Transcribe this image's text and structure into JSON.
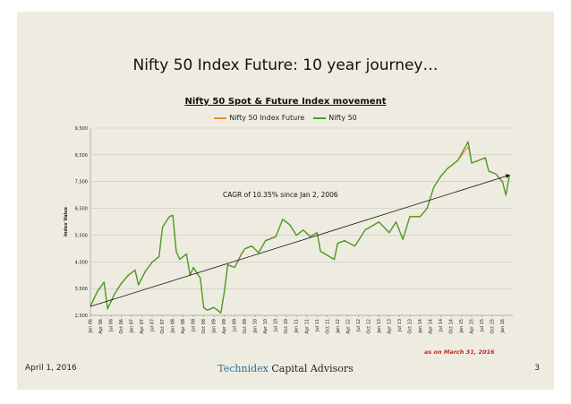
{
  "slide": {
    "title": "Nifty 50 Index Future: 10 year journey…",
    "footer_date": "April 1, 2016",
    "brand_part1": "Tech",
    "brand_part2": "nidex",
    "brand_part3": " Capital Advisors",
    "page_number": "3",
    "as_of": "as on March 31, 2016"
  },
  "colors": {
    "future_series": "#f28c28",
    "spot_series": "#4e9a2a",
    "trend_line": "#111111"
  },
  "chart_data": {
    "type": "line",
    "title": "Nifty 50 Spot & Future Index movement",
    "ylabel": "Index Value",
    "xlabel": "",
    "ylim": [
      2500,
      9500
    ],
    "y_ticks": [
      "2,500",
      "3,500",
      "4,500",
      "5,500",
      "6,500",
      "7,500",
      "8,500",
      "9,500"
    ],
    "x_tick_labels": [
      "Jan 06",
      "Apr 06",
      "Jul 06",
      "Oct 06",
      "Jan 07",
      "Apr 07",
      "Jul 07",
      "Oct 07",
      "Jan 08",
      "Apr 08",
      "Jul 08",
      "Oct 08",
      "Jan 09",
      "Apr 09",
      "Jul 09",
      "Oct 09",
      "Jan 10",
      "Apr 10",
      "Jul 10",
      "Oct 10",
      "Jan 11",
      "Apr 11",
      "Jul 11",
      "Oct 11",
      "Jan 12",
      "Apr 12",
      "Jul 12",
      "Oct 12",
      "Jan 13",
      "Apr 13",
      "Jul 13",
      "Oct 13",
      "Jan 14",
      "Apr 14",
      "Jul 14",
      "Oct 14",
      "Jan 15",
      "Apr 15",
      "Jul 15",
      "Oct 15",
      "Jan 16"
    ],
    "grid": "horizontal",
    "legend_position": "top",
    "annotation": "CAGR of 10.35% since Jan 2, 2006",
    "trend_line": {
      "from": [
        "Jan 06",
        2830
      ],
      "to": [
        "Mar 16",
        7740
      ]
    },
    "series": [
      {
        "name": "Nifty 50 Index Future",
        "x": [
          "Jan 06",
          "Mar 06",
          "May 06",
          "Jun 06",
          "Aug 06",
          "Oct 06",
          "Dec 06",
          "Feb 07",
          "Mar 07",
          "May 07",
          "Jul 07",
          "Sep 07",
          "Oct 07",
          "Dec 07",
          "Jan 08",
          "Feb 08",
          "Mar 08",
          "May 08",
          "Jun 08",
          "Jul 08",
          "Sep 08",
          "Oct 08",
          "Nov 08",
          "Jan 09",
          "Mar 09",
          "Apr 09",
          "May 09",
          "Jul 09",
          "Sep 09",
          "Oct 09",
          "Dec 09",
          "Feb 10",
          "Apr 10",
          "Jul 10",
          "Sep 10",
          "Nov 10",
          "Jan 11",
          "Mar 11",
          "May 11",
          "Jul 11",
          "Aug 11",
          "Dec 11",
          "Jan 12",
          "Mar 12",
          "Jun 12",
          "Sep 12",
          "Jan 13",
          "Apr 13",
          "Jun 13",
          "Aug 13",
          "Oct 13",
          "Jan 14",
          "Mar 14",
          "May 14",
          "Jul 14",
          "Sep 14",
          "Dec 14",
          "Mar 15",
          "Apr 15",
          "Jun 15",
          "Aug 15",
          "Sep 15",
          "Nov 15",
          "Jan 16",
          "Feb 16",
          "Mar 16"
        ],
        "values": [
          2840,
          3400,
          3750,
          2750,
          3300,
          3700,
          4000,
          4200,
          3650,
          4150,
          4500,
          4700,
          5800,
          6200,
          6250,
          4900,
          4600,
          4800,
          4000,
          4300,
          3900,
          2800,
          2700,
          2800,
          2600,
          3400,
          4400,
          4300,
          4800,
          5000,
          5100,
          4850,
          5300,
          5450,
          6100,
          5900,
          5500,
          5700,
          5450,
          5600,
          4900,
          4600,
          5200,
          5300,
          5100,
          5700,
          6000,
          5600,
          6000,
          5350,
          6200,
          6200,
          6500,
          7300,
          7700,
          8000,
          8300,
          8800,
          8200,
          8300,
          8400,
          7900,
          7800,
          7500,
          7000,
          7740
        ]
      },
      {
        "name": "Nifty 50",
        "x": [
          "Jan 06",
          "Mar 06",
          "May 06",
          "Jun 06",
          "Aug 06",
          "Oct 06",
          "Dec 06",
          "Feb 07",
          "Mar 07",
          "May 07",
          "Jul 07",
          "Sep 07",
          "Oct 07",
          "Dec 07",
          "Jan 08",
          "Feb 08",
          "Mar 08",
          "May 08",
          "Jun 08",
          "Jul 08",
          "Sep 08",
          "Oct 08",
          "Nov 08",
          "Jan 09",
          "Mar 09",
          "Apr 09",
          "May 09",
          "Jul 09",
          "Sep 09",
          "Oct 09",
          "Dec 09",
          "Feb 10",
          "Apr 10",
          "Jul 10",
          "Sep 10",
          "Nov 10",
          "Jan 11",
          "Mar 11",
          "May 11",
          "Jul 11",
          "Aug 11",
          "Dec 11",
          "Jan 12",
          "Mar 12",
          "Jun 12",
          "Sep 12",
          "Jan 13",
          "Apr 13",
          "Jun 13",
          "Aug 13",
          "Oct 13",
          "Jan 14",
          "Mar 14",
          "May 14",
          "Jul 14",
          "Sep 14",
          "Dec 14",
          "Mar 15",
          "Apr 15",
          "Jun 15",
          "Aug 15",
          "Sep 15",
          "Nov 15",
          "Jan 16",
          "Feb 16",
          "Mar 16"
        ],
        "values": [
          2830,
          3380,
          3740,
          2740,
          3290,
          3690,
          3990,
          4190,
          3640,
          4140,
          4490,
          4690,
          5790,
          6190,
          6240,
          4890,
          4590,
          4790,
          3990,
          4290,
          3890,
          2790,
          2690,
          2790,
          2590,
          3390,
          4390,
          4290,
          4790,
          4990,
          5090,
          4840,
          5290,
          5440,
          6090,
          5890,
          5490,
          5690,
          5440,
          5590,
          4890,
          4590,
          5190,
          5290,
          5090,
          5690,
          5990,
          5590,
          5990,
          5340,
          6190,
          6190,
          6490,
          7290,
          7690,
          7990,
          8290,
          8990,
          8190,
          8290,
          8390,
          7890,
          7790,
          7490,
          6990,
          7740
        ]
      }
    ]
  }
}
